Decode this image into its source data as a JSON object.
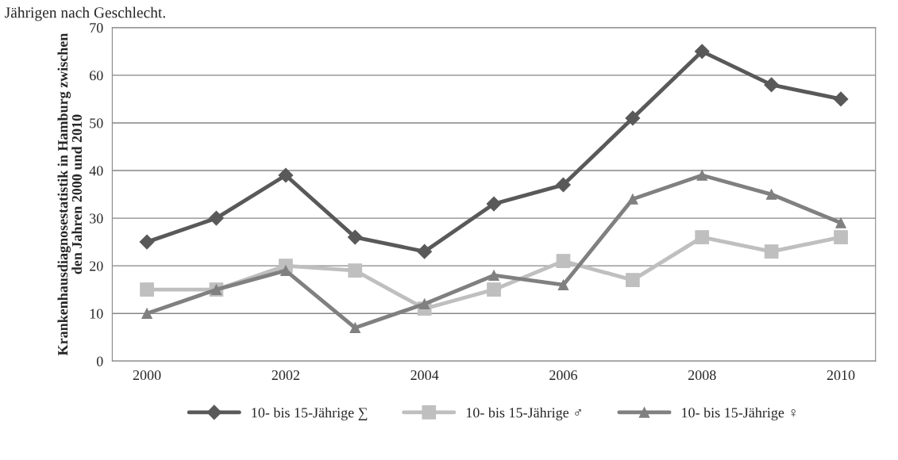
{
  "chart_data": {
    "type": "line",
    "annotations": [
      "Jährigen nach Geschlecht."
    ],
    "ylabel": "Krankenhausdiagnosestatistik in Hamburg zwischen\nden Jahren 2000 und 2010",
    "x": [
      2000,
      2001,
      2002,
      2003,
      2004,
      2005,
      2006,
      2007,
      2008,
      2009,
      2010
    ],
    "xlim": [
      1999.5,
      2010.5
    ],
    "xticks": [
      2000,
      2002,
      2004,
      2006,
      2008,
      2010
    ],
    "ylim": [
      0,
      70
    ],
    "yticks": [
      0,
      10,
      20,
      30,
      40,
      50,
      60,
      70
    ],
    "grid": "y",
    "legend": "bottom",
    "line_style": "solid",
    "series": [
      {
        "name": "10- bis 15-Jährige ∑",
        "color": "#595959",
        "marker": "diamond",
        "values": [
          25,
          30,
          39,
          26,
          23,
          33,
          37,
          51,
          65,
          58,
          55
        ]
      },
      {
        "name": "10- bis 15-Jährige ♂",
        "color": "#bfbfbf",
        "marker": "square",
        "values": [
          15,
          15,
          20,
          19,
          11,
          15,
          21,
          17,
          26,
          23,
          26
        ]
      },
      {
        "name": "10- bis 15-Jährige ♀",
        "color": "#808080",
        "marker": "triangle",
        "values": [
          10,
          15,
          19,
          7,
          12,
          18,
          16,
          34,
          39,
          35,
          29
        ]
      }
    ]
  }
}
